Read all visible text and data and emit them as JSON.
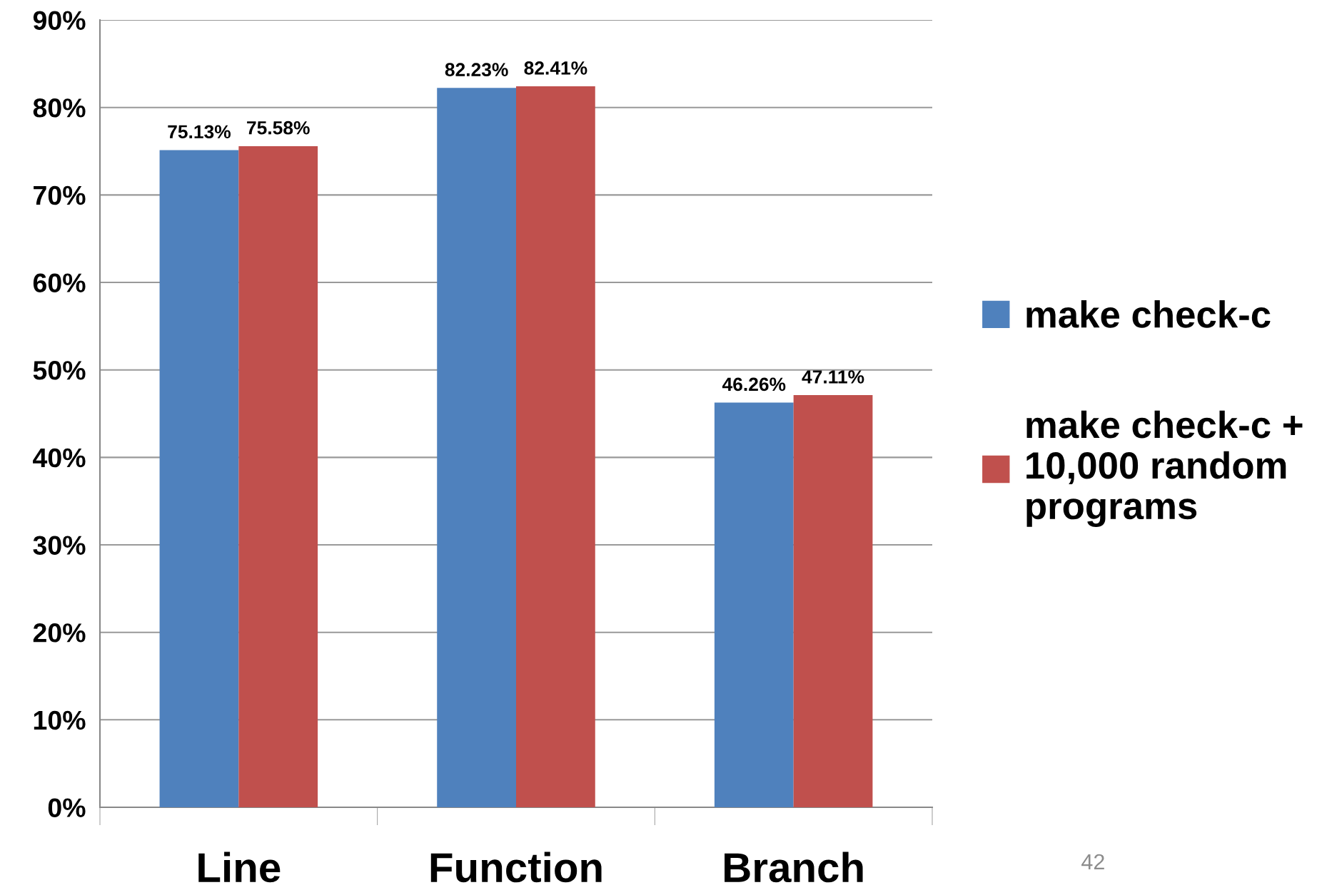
{
  "chart_data": {
    "type": "bar",
    "categories": [
      "Line",
      "Function",
      "Branch"
    ],
    "series": [
      {
        "name": "make check-c",
        "color": "#4f81bd",
        "values": [
          75.13,
          82.23,
          46.26
        ],
        "value_labels": [
          "75.13%",
          "82.23%",
          "46.26%"
        ]
      },
      {
        "name": "make check-c +\n10,000 random\nprograms",
        "color": "#c0504d",
        "values": [
          75.58,
          82.41,
          47.11
        ],
        "value_labels": [
          "75.58%",
          "82.41%",
          "47.11%"
        ]
      }
    ],
    "ylim": [
      0,
      90
    ],
    "yticks": [
      {
        "value": 0,
        "label": "0%"
      },
      {
        "value": 10,
        "label": "10%"
      },
      {
        "value": 20,
        "label": "20%"
      },
      {
        "value": 30,
        "label": "30%"
      },
      {
        "value": 40,
        "label": "40%"
      },
      {
        "value": 50,
        "label": "50%"
      },
      {
        "value": 60,
        "label": "60%"
      },
      {
        "value": 70,
        "label": "70%"
      },
      {
        "value": 80,
        "label": "80%"
      },
      {
        "value": 90,
        "label": "90%"
      }
    ],
    "grid": "y",
    "legend": "right",
    "annotations": [
      "42"
    ]
  }
}
